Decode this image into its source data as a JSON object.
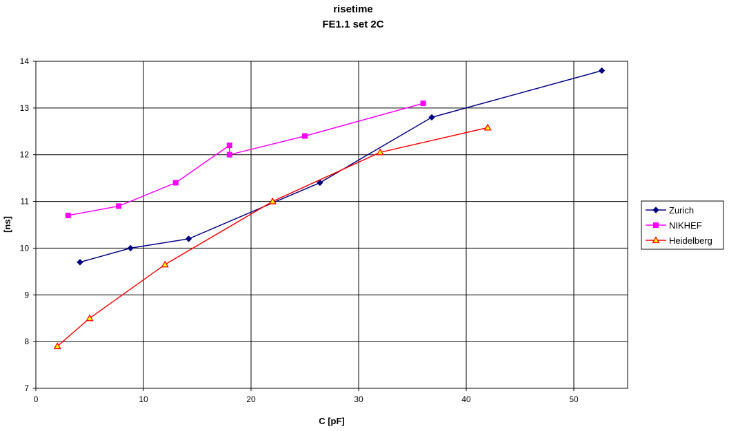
{
  "chart_data": {
    "type": "line",
    "title": "risetime",
    "subtitle": "FE1.1 set 2C",
    "xlabel": "C [pF]",
    "ylabel": "[ns]",
    "xlim": [
      0,
      55
    ],
    "ylim": [
      7,
      14
    ],
    "x_ticks": [
      "0",
      "10",
      "20",
      "30",
      "40",
      "50"
    ],
    "y_ticks": [
      "7",
      "8",
      "9",
      "10",
      "11",
      "12",
      "13",
      "14"
    ],
    "grid": true,
    "legend_position": "right",
    "series": [
      {
        "name": "Zurich",
        "color": "#000080",
        "marker": "diamond",
        "x": [
          4.1,
          8.8,
          14.2,
          26.4,
          36.8,
          52.6
        ],
        "y": [
          9.7,
          10.0,
          10.2,
          11.4,
          12.8,
          13.8
        ]
      },
      {
        "name": "NIKHEF",
        "color": "#ff00ff",
        "marker": "square",
        "x": [
          3.0,
          7.7,
          13.0,
          18.0,
          18.0,
          25.0,
          36.0
        ],
        "y": [
          10.7,
          10.9,
          11.4,
          12.2,
          12.0,
          12.4,
          13.1
        ]
      },
      {
        "name": "Heidelberg",
        "color": "#ff0000",
        "marker": "triangle",
        "marker_fill": "#ffff00",
        "x": [
          2.0,
          5.0,
          12.0,
          22.0,
          32.0,
          42.0
        ],
        "y": [
          7.9,
          8.5,
          9.65,
          11.0,
          12.05,
          12.58
        ]
      }
    ]
  }
}
